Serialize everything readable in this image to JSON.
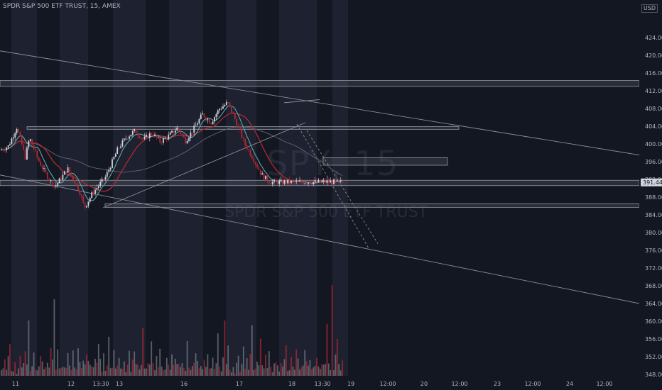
{
  "header": {
    "title": "SPDR S&P 500 ETF TRUST, 15, AMEX",
    "currency": "USD"
  },
  "watermark": {
    "symbol": "SPY, 15",
    "name": "SPDR S&P 500 ETF TRUST"
  },
  "colors": {
    "background": "#131722",
    "session_band": "#1d2130",
    "up_candle": "#d1d4dc",
    "down_candle": "#b22833",
    "ma_slow": "#b22833",
    "ma_fast": "#5fa8a8",
    "ma_faint": "#5d606b",
    "trendline": "#8a8d96",
    "zone": "#9598a1",
    "text": "#b2b5be",
    "price_tag_bg": "#d1d4dc",
    "price_tag_text": "#131722"
  },
  "chart_data": {
    "type": "candlestick",
    "title": "SPDR S&P 500 ETF TRUST, 15, AMEX",
    "y_axis": {
      "ticks": [
        348.0,
        352.0,
        356.0,
        360.0,
        364.0,
        368.0,
        372.0,
        376.0,
        380.0,
        384.0,
        388.0,
        392.0,
        396.0,
        400.0,
        404.0,
        408.0,
        412.0,
        416.0,
        420.0,
        424.0
      ],
      "range": [
        347,
        426
      ],
      "side": "right"
    },
    "x_axis": {
      "ticks": [
        "11",
        "12",
        "13:30",
        "13",
        "16",
        "17",
        "18",
        "13:30",
        "19",
        "12:00",
        "20",
        "12:00",
        "23",
        "12:00",
        "24",
        "12:00"
      ]
    },
    "last_price": "391.44",
    "price_path": [
      {
        "t": 0,
        "p": 398.6
      },
      {
        "t": 0.04,
        "p": 399.5
      },
      {
        "t": 0.08,
        "p": 403.8
      },
      {
        "t": 0.12,
        "p": 397.0
      },
      {
        "t": 0.14,
        "p": 401.4
      },
      {
        "t": 0.18,
        "p": 396.5
      },
      {
        "t": 0.22,
        "p": 393.0
      },
      {
        "t": 0.26,
        "p": 390.3
      },
      {
        "t": 0.3,
        "p": 393.0
      },
      {
        "t": 0.32,
        "p": 394.5
      },
      {
        "t": 0.36,
        "p": 391.0
      },
      {
        "t": 0.38,
        "p": 389.0
      },
      {
        "t": 0.4,
        "p": 385.6
      },
      {
        "t": 0.44,
        "p": 389.0
      },
      {
        "t": 0.5,
        "p": 392.5
      },
      {
        "t": 0.56,
        "p": 399.0
      },
      {
        "t": 0.6,
        "p": 401.5
      },
      {
        "t": 0.64,
        "p": 403.0
      },
      {
        "t": 0.68,
        "p": 401.0
      },
      {
        "t": 0.72,
        "p": 402.5
      },
      {
        "t": 0.76,
        "p": 400.5
      },
      {
        "t": 0.8,
        "p": 401.8
      },
      {
        "t": 0.84,
        "p": 403.6
      },
      {
        "t": 0.88,
        "p": 400.7
      },
      {
        "t": 0.92,
        "p": 403.5
      },
      {
        "t": 0.96,
        "p": 406.7
      },
      {
        "t": 1.0,
        "p": 404.8
      },
      {
        "t": 1.04,
        "p": 407.9
      },
      {
        "t": 1.08,
        "p": 409.3
      },
      {
        "t": 1.12,
        "p": 405.0
      },
      {
        "t": 1.16,
        "p": 400.0
      },
      {
        "t": 1.2,
        "p": 396.8
      },
      {
        "t": 1.24,
        "p": 393.1
      },
      {
        "t": 1.28,
        "p": 391.4
      }
    ],
    "volume_path": [
      3,
      2,
      8,
      3,
      5,
      9,
      3,
      2,
      4,
      1,
      3,
      7,
      2,
      4,
      8,
      3,
      4,
      2,
      5,
      12,
      3,
      2,
      4,
      6,
      9,
      3,
      2,
      5,
      3,
      8,
      4,
      2,
      3,
      6,
      4,
      2,
      5,
      3,
      4,
      7,
      3,
      2,
      6,
      4,
      3,
      9,
      5,
      2,
      4,
      3,
      6,
      8,
      3,
      4,
      2,
      5,
      3,
      9,
      4,
      2,
      6,
      3,
      4,
      12
    ]
  }
}
